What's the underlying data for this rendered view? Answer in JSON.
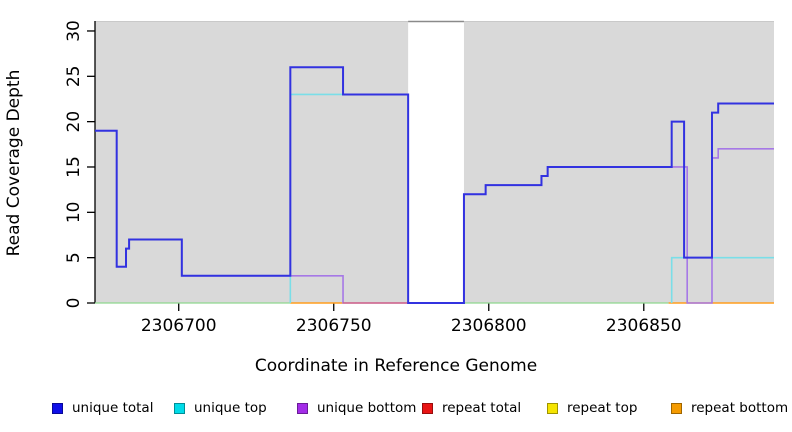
{
  "figure": {
    "background_color": "#ffffff",
    "plot_background_color": "#d9d9d9"
  },
  "chart_data": {
    "type": "line",
    "subtype": "step",
    "title": "",
    "xlabel": "Coordinate in Reference Genome",
    "ylabel": "Read Coverage Depth",
    "grid": false,
    "xlim": [
      2306673,
      2306892
    ],
    "ylim": [
      0,
      31.1
    ],
    "xticks": [
      2306700,
      2306750,
      2306800,
      2306850
    ],
    "yticks": [
      0,
      5,
      10,
      15,
      20,
      25,
      30
    ],
    "plot_background": "#d9d9d9",
    "no_data_region": {
      "from": 2306774,
      "to": 2306792,
      "color": "#ffffff",
      "top_edge_color": "#8a8a8a"
    },
    "top_edge_color": "#c9c9c9",
    "series": [
      {
        "name": "zero baseline overlap",
        "color": "#8fd78f",
        "width": 1.3,
        "in_legend": false,
        "segments": [
          {
            "points": [
              [
                2306673,
                0
              ]
            ],
            "end": 2306736
          },
          {
            "points": [
              [
                2306792,
                0
              ]
            ],
            "end": 2306858
          }
        ]
      },
      {
        "name": "repeat bottom",
        "color": "#ff9d1e",
        "width": 1.6,
        "in_legend": true,
        "segments": [
          {
            "points": [
              [
                2306736,
                0
              ]
            ],
            "end": 2306753
          },
          {
            "points": [
              [
                2306858,
                0
              ]
            ],
            "end": 2306892
          }
        ]
      },
      {
        "name": "unique bottom",
        "color": "#a678e6",
        "width": 1.6,
        "in_legend": true,
        "segments": [
          {
            "points": [
              [
                2306673,
                19
              ],
              [
                2306680,
                4
              ],
              [
                2306683,
                6
              ],
              [
                2306684,
                7
              ],
              [
                2306701,
                3
              ],
              [
                2306753,
                0
              ],
              [
                2306792,
                12
              ],
              [
                2306799,
                13
              ],
              [
                2306817,
                14
              ],
              [
                2306819,
                15
              ],
              [
                2306864,
                0
              ],
              [
                2306872,
                16
              ],
              [
                2306874,
                17
              ]
            ],
            "end": 2306892
          }
        ]
      },
      {
        "name": "repeat total",
        "color": "#d95f75",
        "width": 1.3,
        "in_legend": true,
        "segments": [
          {
            "points": [
              [
                2306753,
                0
              ]
            ],
            "end": 2306774
          }
        ]
      },
      {
        "name": "unique top",
        "color": "#7adee8",
        "width": 1.6,
        "in_legend": true,
        "segments": [
          {
            "points": [
              [
                2306736,
                0
              ],
              [
                2306736,
                23
              ],
              [
                2306774,
                0
              ]
            ],
            "end": 2306774
          },
          {
            "points": [
              [
                2306859,
                0
              ],
              [
                2306859,
                5
              ]
            ],
            "end": 2306892
          }
        ]
      },
      {
        "name": "unique total",
        "color": "#3232e0",
        "width": 2,
        "in_legend": true,
        "segments": [
          {
            "points": [
              [
                2306673,
                19
              ],
              [
                2306680,
                4
              ],
              [
                2306683,
                6
              ],
              [
                2306684,
                7
              ],
              [
                2306701,
                3
              ],
              [
                2306736,
                26
              ],
              [
                2306753,
                23
              ],
              [
                2306774,
                0
              ],
              [
                2306792,
                12
              ],
              [
                2306799,
                13
              ],
              [
                2306817,
                14
              ],
              [
                2306819,
                15
              ],
              [
                2306859,
                20
              ],
              [
                2306863,
                5
              ],
              [
                2306872,
                21
              ],
              [
                2306874,
                22
              ]
            ],
            "end": 2306892
          }
        ]
      }
    ],
    "legend": {
      "position": "bottom",
      "entries": [
        {
          "label": "unique total",
          "color": "#0f0fe8"
        },
        {
          "label": "unique top",
          "color": "#00dbe8"
        },
        {
          "label": "unique bottom",
          "color": "#a32ce8"
        },
        {
          "label": "repeat total",
          "color": "#e81414"
        },
        {
          "label": "repeat top",
          "color": "#f5e400"
        },
        {
          "label": "repeat bottom",
          "color": "#f59b00"
        }
      ]
    }
  }
}
